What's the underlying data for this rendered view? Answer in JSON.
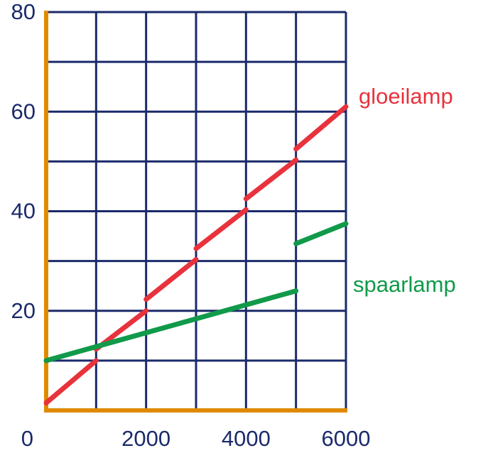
{
  "chart_data": {
    "type": "line",
    "x_axis_color": "#e08a00",
    "grid_color": "#1b2a6b",
    "tick_color": "#1b2a6b",
    "xlim": [
      0,
      6000
    ],
    "ylim": [
      0,
      80
    ],
    "xticks": [
      0,
      2000,
      4000,
      6000
    ],
    "yticks": [
      20,
      40,
      60,
      80
    ],
    "xgrid": [
      1000,
      2000,
      3000,
      4000,
      5000,
      6000
    ],
    "ygrid": [
      10,
      20,
      30,
      40,
      50,
      60,
      70,
      80
    ],
    "series": [
      {
        "name": "gloeilamp",
        "color": "#e8323c",
        "x": [
          0,
          1000,
          null,
          1000,
          2000,
          null,
          2000,
          3000,
          null,
          3000,
          4000,
          null,
          4000,
          5000,
          null,
          5000,
          6000
        ],
        "values": [
          1.5,
          10,
          null,
          12.3,
          20,
          null,
          22.3,
          30.3,
          null,
          32.5,
          40.3,
          null,
          42.5,
          50.3,
          null,
          52.5,
          61
        ]
      },
      {
        "name": "spaarlamp",
        "color": "#109a4a",
        "x": [
          0,
          5000,
          null,
          5000,
          6000
        ],
        "values": [
          10,
          24,
          null,
          33.5,
          37.5
        ]
      }
    ]
  }
}
